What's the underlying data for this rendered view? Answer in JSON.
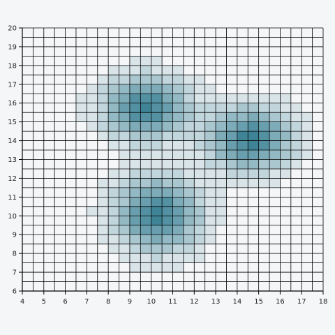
{
  "chart_data": {
    "type": "heatmap",
    "title": "",
    "xlabel": "",
    "ylabel": "",
    "xlim": [
      4,
      18
    ],
    "ylim": [
      6,
      20
    ],
    "cell_size": 0.5,
    "grid": true,
    "x_ticks": [
      "4",
      "5",
      "6",
      "7",
      "8",
      "9",
      "10",
      "11",
      "12",
      "13",
      "14",
      "15",
      "16",
      "17",
      "18"
    ],
    "y_ticks": [
      "6",
      "7",
      "8",
      "9",
      "10",
      "11",
      "12",
      "13",
      "14",
      "15",
      "16",
      "17",
      "18",
      "19",
      "20"
    ],
    "clusters": [
      {
        "cx": 9.75,
        "cy": 15.75,
        "sx": 1.3,
        "sy": 1.1,
        "peak": 1.0
      },
      {
        "cx": 14.6,
        "cy": 14.1,
        "sx": 1.3,
        "sy": 1.1,
        "peak": 1.0
      },
      {
        "cx": 10.3,
        "cy": 10.1,
        "sx": 1.3,
        "sy": 1.3,
        "peak": 1.0
      }
    ],
    "colors": {
      "high": "#2f7a8e",
      "low": "#f5f6f8",
      "grid": "#000000",
      "background": "#f5f6f8"
    }
  }
}
